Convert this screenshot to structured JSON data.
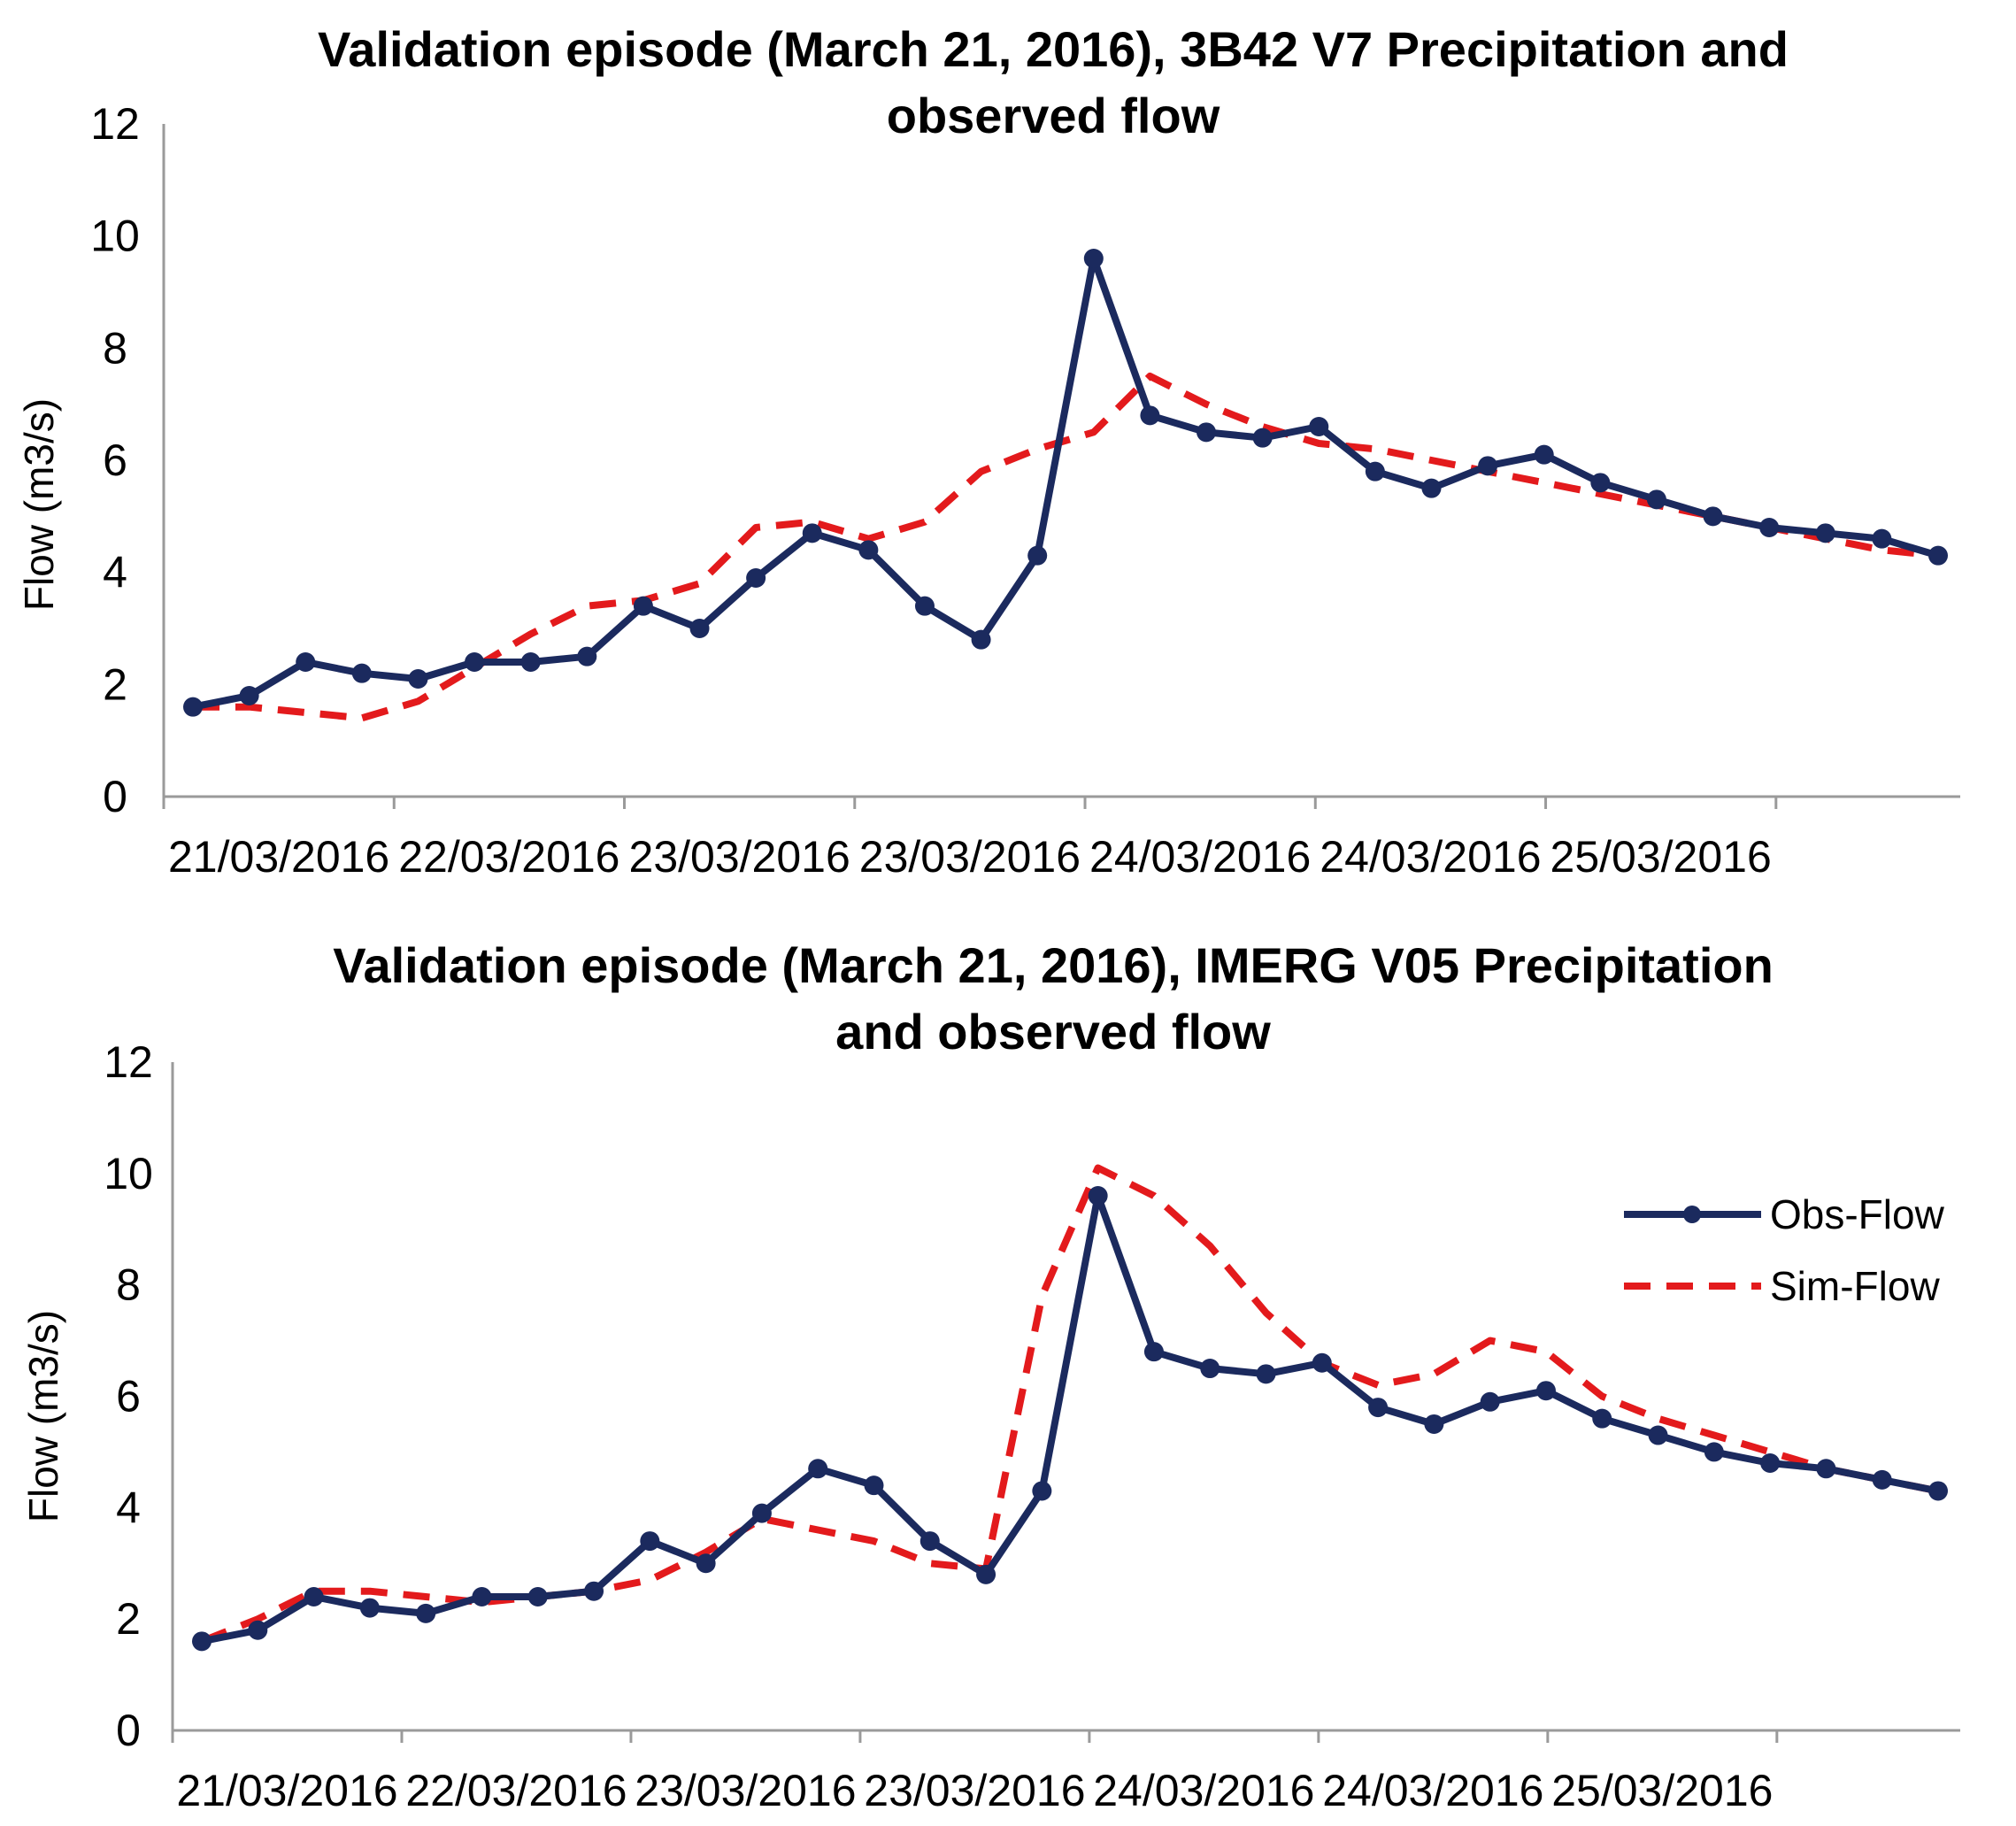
{
  "colors": {
    "obs": "#1b2a5e",
    "sim": "#e31a1c",
    "axis": "#9a9a9a"
  },
  "legend": {
    "obs_label": "Obs-Flow",
    "sim_label": "Sim-Flow",
    "placement": "right"
  },
  "chart_data": [
    {
      "type": "line",
      "title_line1": "Validation episode (March 21, 2016), 3B42 V7 Precipitation and",
      "title_line2": "observed flow",
      "xlabel": "",
      "ylabel": "Flow (m3/s)",
      "ylim": [
        0,
        12
      ],
      "yticks": [
        "0",
        "2",
        "4",
        "6",
        "8",
        "10",
        "12"
      ],
      "xticks": [
        "21/03/2016",
        "22/03/2016",
        "23/03/2016",
        "23/03/2016",
        "24/03/2016",
        "24/03/2016",
        "25/03/2016"
      ],
      "series": [
        {
          "name": "Obs-Flow",
          "style": "solid-markers",
          "values": [
            1.6,
            1.8,
            2.4,
            2.2,
            2.1,
            2.4,
            2.4,
            2.5,
            3.4,
            3.0,
            3.9,
            4.7,
            4.4,
            3.4,
            2.8,
            4.3,
            9.6,
            6.8,
            6.5,
            6.4,
            6.6,
            5.8,
            5.5,
            5.9,
            6.1,
            5.6,
            5.3,
            5.0,
            4.8,
            4.7,
            4.6,
            4.3
          ]
        },
        {
          "name": "Sim-Flow",
          "style": "dashed",
          "values": [
            1.6,
            1.6,
            1.5,
            1.4,
            1.7,
            2.3,
            2.9,
            3.4,
            3.5,
            3.8,
            4.8,
            4.9,
            4.6,
            4.9,
            5.8,
            6.2,
            6.5,
            7.5,
            7.0,
            6.6,
            6.3,
            6.2,
            6.0,
            5.8,
            5.6,
            5.4,
            5.2,
            5.0,
            4.8,
            4.6,
            4.4,
            4.3
          ]
        }
      ]
    },
    {
      "type": "line",
      "title_line1": "Validation episode (March 21, 2016), IMERG V05 Precipitation",
      "title_line2": "and observed flow",
      "xlabel": "",
      "ylabel": "Flow (m3/s)",
      "ylim": [
        0,
        12
      ],
      "yticks": [
        "0",
        "2",
        "4",
        "6",
        "8",
        "10",
        "12"
      ],
      "xticks": [
        "21/03/2016",
        "22/03/2016",
        "23/03/2016",
        "23/03/2016",
        "24/03/2016",
        "24/03/2016",
        "25/03/2016"
      ],
      "series": [
        {
          "name": "Obs-Flow",
          "style": "solid-markers",
          "values": [
            1.6,
            1.8,
            2.4,
            2.2,
            2.1,
            2.4,
            2.4,
            2.5,
            3.4,
            3.0,
            3.9,
            4.7,
            4.4,
            3.4,
            2.8,
            4.3,
            9.6,
            6.8,
            6.5,
            6.4,
            6.6,
            5.8,
            5.5,
            5.9,
            6.1,
            5.6,
            5.3,
            5.0,
            4.8,
            4.7,
            4.5,
            4.3
          ]
        },
        {
          "name": "Sim-Flow",
          "style": "dashed",
          "values": [
            1.6,
            2.0,
            2.5,
            2.5,
            2.4,
            2.3,
            2.4,
            2.5,
            2.7,
            3.2,
            3.8,
            3.6,
            3.4,
            3.0,
            2.9,
            7.8,
            10.1,
            9.6,
            8.7,
            7.5,
            6.6,
            6.2,
            6.4,
            7.0,
            6.8,
            6.0,
            5.6,
            5.3,
            5.0,
            4.7,
            4.5,
            4.3
          ]
        }
      ]
    }
  ]
}
